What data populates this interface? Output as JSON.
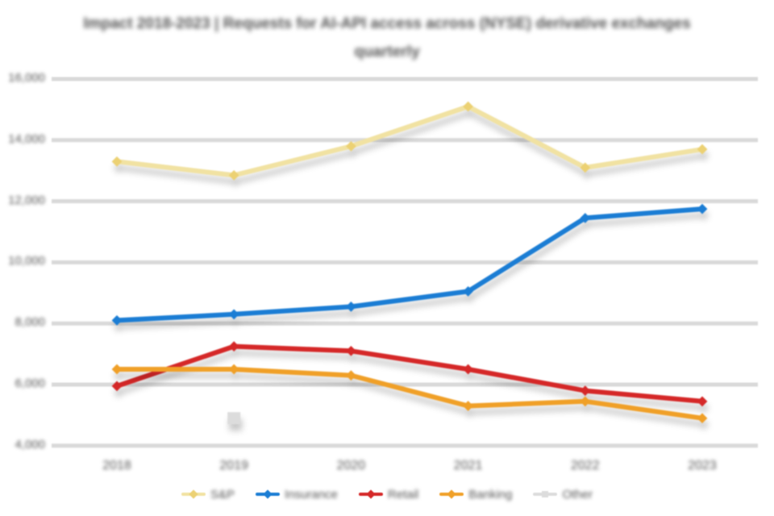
{
  "title": {
    "line1": "Impact 2018-2023 | Requests for AI-API access across (NYSE) derivative exchanges",
    "line2": "quarterly"
  },
  "chart_data": {
    "type": "line",
    "categories": [
      "2018",
      "2019",
      "2020",
      "2021",
      "2022",
      "2023"
    ],
    "series": [
      {
        "name": "S&P",
        "color": "#f1e2a2",
        "marker_color": "#ecd173",
        "marker": "diamond",
        "values": [
          13300,
          12850,
          13800,
          15100,
          13100,
          13700
        ]
      },
      {
        "name": "Insurance",
        "color": "#1b7dd4",
        "marker": "diamond",
        "values": [
          8100,
          8300,
          8550,
          9050,
          11450,
          11750
        ]
      },
      {
        "name": "Retail",
        "color": "#d52828",
        "marker": "diamond",
        "values": [
          5950,
          7250,
          7100,
          6500,
          5800,
          5450
        ]
      },
      {
        "name": "Banking",
        "color": "#f0a028",
        "marker": "diamond",
        "values": [
          6500,
          6500,
          6300,
          5300,
          5450,
          4900
        ]
      },
      {
        "name": "Other",
        "color": "#dcdcdc",
        "marker": "square",
        "values": [
          null,
          4900,
          null,
          null,
          null,
          null
        ]
      }
    ],
    "y_ticks": [
      "16,000",
      "14,000",
      "12,000",
      "10,000",
      "8,000",
      "6,000",
      "4,000"
    ],
    "y_range": [
      4000,
      16000
    ],
    "xlabel": "",
    "ylabel": "",
    "grid": "horizontal",
    "legend_position": "bottom"
  },
  "colors": {
    "background": "#ffffff",
    "gridline": "#d9d9d9",
    "text": "#555555"
  }
}
